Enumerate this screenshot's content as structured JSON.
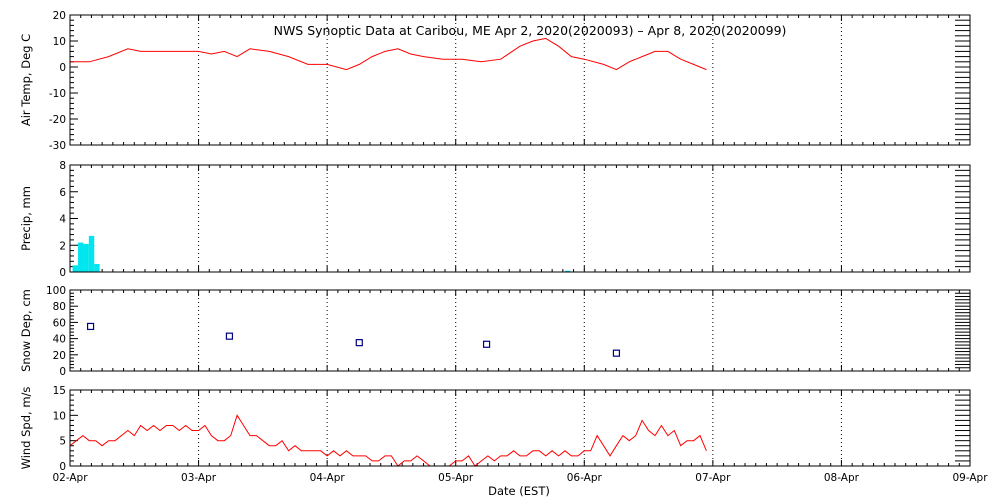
{
  "title": "NWS Synoptic Data at Caribou, ME   Apr  2, 2020(2020093) – Apr  8, 2020(2020099)",
  "xlabel": "Date (EST)",
  "colors": {
    "temp": "#ff0000",
    "precip": "#00e5ee",
    "snow": "#000080",
    "wind": "#ff0000"
  },
  "chart_data": [
    {
      "type": "line",
      "ylabel": "Air Temp, Deg C",
      "xlim": [
        0,
        7
      ],
      "ylim": [
        -30,
        20
      ],
      "yticks": [
        -30,
        -20,
        -10,
        0,
        10,
        20
      ],
      "x_tick_labels": [
        "02-Apr",
        "03-Apr",
        "04-Apr",
        "05-Apr",
        "06-Apr",
        "07-Apr",
        "08-Apr",
        "09-Apr"
      ],
      "grid": true,
      "series": [
        {
          "x": [
            0.0,
            0.15,
            0.3,
            0.45,
            0.55,
            0.7,
            0.85,
            1.0,
            1.1,
            1.2,
            1.3,
            1.4,
            1.55,
            1.7,
            1.85,
            2.0,
            2.15,
            2.25,
            2.35,
            2.45,
            2.55,
            2.65,
            2.75,
            2.9,
            3.05,
            3.2,
            3.35,
            3.5,
            3.6,
            3.7,
            3.8,
            3.9,
            4.0,
            4.15,
            4.25,
            4.35,
            4.45,
            4.55,
            4.65,
            4.75,
            4.85,
            4.95
          ],
          "y": [
            2,
            2,
            4,
            7,
            6,
            6,
            6,
            6,
            5,
            6,
            4,
            7,
            6,
            4,
            1,
            1,
            -1,
            1,
            4,
            6,
            7,
            5,
            4,
            3,
            3,
            2,
            3,
            8,
            10,
            11,
            8,
            4,
            3,
            1,
            -1,
            2,
            4,
            6,
            6,
            3,
            1,
            -1
          ]
        }
      ]
    },
    {
      "type": "bar",
      "ylabel": "Precip, mm",
      "xlim": [
        0,
        7
      ],
      "ylim": [
        0,
        8
      ],
      "yticks": [
        0,
        2,
        4,
        6,
        8
      ],
      "x_tick_labels": [
        "02-Apr",
        "03-Apr",
        "04-Apr",
        "05-Apr",
        "06-Apr",
        "07-Apr",
        "08-Apr",
        "09-Apr"
      ],
      "grid": true,
      "bar_width": 0.042,
      "x": [
        0.02,
        0.0625,
        0.1045,
        0.1465,
        0.1885,
        3.85
      ],
      "values": [
        0.5,
        2.2,
        2.1,
        2.7,
        0.6,
        0.1
      ]
    },
    {
      "type": "scatter",
      "ylabel": "Snow Dep, cm",
      "xlim": [
        0,
        7
      ],
      "ylim": [
        0,
        100
      ],
      "yticks": [
        0,
        20,
        40,
        60,
        80,
        100
      ],
      "x_tick_labels": [
        "02-Apr",
        "03-Apr",
        "04-Apr",
        "05-Apr",
        "06-Apr",
        "07-Apr",
        "08-Apr",
        "09-Apr"
      ],
      "grid": true,
      "x": [
        0.16,
        1.24,
        2.25,
        3.24,
        4.25
      ],
      "y": [
        55,
        43,
        35,
        33,
        22
      ]
    },
    {
      "type": "line",
      "ylabel": "Wind Spd, m/s",
      "xlim": [
        0,
        7
      ],
      "ylim": [
        0,
        15
      ],
      "yticks": [
        0,
        5,
        10,
        15
      ],
      "x_tick_labels": [
        "02-Apr",
        "03-Apr",
        "04-Apr",
        "05-Apr",
        "06-Apr",
        "07-Apr",
        "08-Apr",
        "09-Apr"
      ],
      "grid": true,
      "series": [
        {
          "x": [
            0.0,
            0.05,
            0.1,
            0.15,
            0.2,
            0.25,
            0.3,
            0.35,
            0.4,
            0.45,
            0.5,
            0.55,
            0.6,
            0.65,
            0.7,
            0.75,
            0.8,
            0.85,
            0.9,
            0.95,
            1.0,
            1.05,
            1.1,
            1.15,
            1.2,
            1.25,
            1.3,
            1.35,
            1.4,
            1.45,
            1.5,
            1.55,
            1.6,
            1.65,
            1.7,
            1.75,
            1.8,
            1.85,
            1.9,
            1.95,
            2.0,
            2.05,
            2.1,
            2.15,
            2.2,
            2.25,
            2.3,
            2.35,
            2.4,
            2.45,
            2.5,
            2.55,
            2.6,
            2.65,
            2.7,
            2.75,
            2.8,
            2.85,
            2.9,
            2.95,
            3.0,
            3.05,
            3.1,
            3.15,
            3.2,
            3.25,
            3.3,
            3.35,
            3.4,
            3.45,
            3.5,
            3.55,
            3.6,
            3.65,
            3.7,
            3.75,
            3.8,
            3.85,
            3.9,
            3.95,
            4.0,
            4.05,
            4.1,
            4.15,
            4.2,
            4.25,
            4.3,
            4.35,
            4.4,
            4.45,
            4.5,
            4.55,
            4.6,
            4.65,
            4.7,
            4.75,
            4.8,
            4.85,
            4.9,
            4.95
          ],
          "y": [
            4,
            5,
            6,
            5,
            5,
            4,
            5,
            5,
            6,
            7,
            6,
            8,
            7,
            8,
            7,
            8,
            8,
            7,
            8,
            7,
            7,
            8,
            6,
            5,
            5,
            6,
            10,
            8,
            6,
            6,
            5,
            4,
            4,
            5,
            3,
            4,
            3,
            3,
            3,
            3,
            2,
            3,
            2,
            3,
            2,
            2,
            2,
            1,
            1,
            2,
            2,
            0,
            1,
            1,
            2,
            1,
            0,
            0,
            0,
            0,
            1,
            1,
            2,
            0,
            1,
            2,
            1,
            2,
            2,
            3,
            2,
            2,
            3,
            3,
            2,
            3,
            2,
            3,
            2,
            2,
            3,
            3,
            6,
            4,
            2,
            4,
            6,
            5,
            6,
            9,
            7,
            6,
            8,
            6,
            7,
            4,
            5,
            5,
            6,
            3
          ]
        }
      ]
    }
  ]
}
